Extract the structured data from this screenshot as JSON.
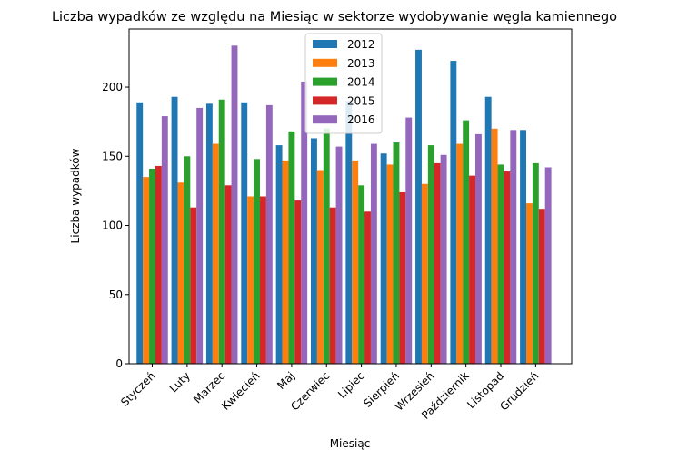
{
  "chart_data": {
    "type": "bar",
    "title": "Liczba wypadków ze względu na Miesiąc w sektorze    wydobywanie węgla kamiennego",
    "xlabel": "Miesiąc",
    "ylabel": "Liczba wypadków",
    "ylim": [
      0,
      242
    ],
    "yticks": [
      0,
      50,
      100,
      150,
      200
    ],
    "grid": false,
    "legend_position": "top-center",
    "categories": [
      "Styczeń",
      "Luty",
      "Marzec",
      "Kwiecień",
      "Maj",
      "Czerwiec",
      "Lipiec",
      "Sierpień",
      "Wrzesień",
      "Październik",
      "Listopad",
      "Grudzień"
    ],
    "series": [
      {
        "name": "2012",
        "color": "#1f77b4",
        "values": [
          189,
          193,
          188,
          189,
          158,
          163,
          190,
          152,
          227,
          219,
          193,
          169
        ]
      },
      {
        "name": "2013",
        "color": "#ff7f0e",
        "values": [
          135,
          131,
          159,
          121,
          147,
          140,
          147,
          144,
          130,
          159,
          170,
          116
        ]
      },
      {
        "name": "2014",
        "color": "#2ca02c",
        "values": [
          141,
          150,
          191,
          148,
          168,
          170,
          129,
          160,
          158,
          176,
          144,
          145
        ]
      },
      {
        "name": "2015",
        "color": "#d62728",
        "values": [
          143,
          113,
          129,
          121,
          118,
          113,
          110,
          124,
          145,
          136,
          139,
          112
        ]
      },
      {
        "name": "2016",
        "color": "#9467bd",
        "values": [
          179,
          185,
          230,
          187,
          204,
          157,
          159,
          178,
          151,
          166,
          169,
          142
        ]
      }
    ]
  }
}
